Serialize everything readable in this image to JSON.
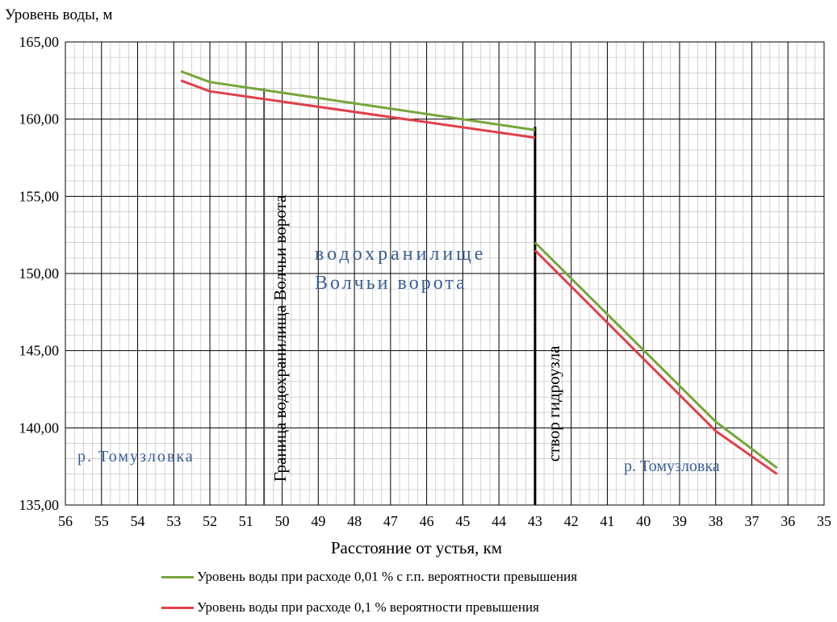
{
  "chart_data": {
    "type": "line",
    "ylabel": "Уровень воды, м",
    "xlabel": "Расстояние от устья, км",
    "xlim": [
      56,
      35
    ],
    "ylim": [
      135,
      165
    ],
    "x_ticks": [
      "56",
      "55",
      "54",
      "53",
      "52",
      "51",
      "50",
      "49",
      "48",
      "47",
      "46",
      "45",
      "44",
      "43",
      "42",
      "41",
      "40",
      "39",
      "38",
      "37",
      "36",
      "35"
    ],
    "y_ticks": [
      "135,00",
      "140,00",
      "145,00",
      "150,00",
      "155,00",
      "160,00",
      "165,00"
    ],
    "y_tick_values": [
      135,
      140,
      145,
      150,
      155,
      160,
      165
    ],
    "grid": true,
    "series": [
      {
        "name": "Уровень воды при расходе 0,01 % с г.п. вероятности превышения",
        "color": "#77a63a",
        "segments": [
          [
            [
              52.8,
              163.1
            ],
            [
              52.0,
              162.4
            ],
            [
              43.0,
              159.3
            ]
          ],
          [
            [
              43.0,
              152.0
            ],
            [
              38.0,
              140.4
            ],
            [
              36.3,
              137.4
            ]
          ]
        ]
      },
      {
        "name": "Уровень воды при расходе 0,1 % вероятности превышения",
        "color": "#e0404a",
        "segments": [
          [
            [
              52.8,
              162.5
            ],
            [
              52.0,
              161.8
            ],
            [
              43.0,
              158.8
            ]
          ],
          [
            [
              43.0,
              151.5
            ],
            [
              38.0,
              139.8
            ],
            [
              36.3,
              137.0
            ]
          ]
        ]
      }
    ],
    "annotations": {
      "boundary_label": "Граница водохранилища Волчьи ворота",
      "boundary_x": 50.5,
      "boundary_top": 162.0,
      "dam_label": "створ гидроузла",
      "dam_x": 43.0,
      "dam_top": 159.5,
      "reservoir_line1": "водохранилище",
      "reservoir_line2": "Волчьи ворота",
      "river_left": "р. Томузловка",
      "river_right": "р. Томузловка"
    }
  },
  "legend": {
    "item1": "Уровень воды при расходе 0,01 % с г.п. вероятности превышения",
    "item2": "Уровень воды при расходе 0,1 % вероятности превышения"
  }
}
